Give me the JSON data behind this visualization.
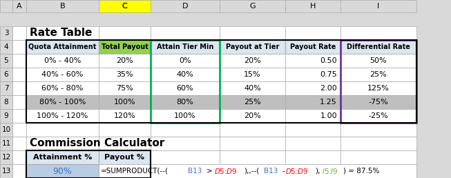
{
  "title_rate": "Rate Table",
  "title_calc": "Commission Calculator",
  "headers": [
    "Quota Attainment",
    "Total Payout",
    "Attain Tier Min",
    "Payout at Tier",
    "Payout Rate",
    "Differential Rate"
  ],
  "rows": [
    [
      "0% - 40%",
      "20%",
      "0%",
      "20%",
      "0.50",
      "50%"
    ],
    [
      "40% - 60%",
      "35%",
      "40%",
      "15%",
      "0.75",
      "25%"
    ],
    [
      "60% - 80%",
      "75%",
      "60%",
      "40%",
      "2.00",
      "125%"
    ],
    [
      "80% - 100%",
      "100%",
      "80%",
      "25%",
      "1.25",
      "-75%"
    ],
    [
      "100% - 120%",
      "120%",
      "100%",
      "20%",
      "1.00",
      "-25%"
    ]
  ],
  "calc_headers": [
    "Attainment %",
    "Payout %"
  ],
  "calc_row": [
    "90%",
    "=SUMPRODUCT(--(B13>$D$5:$D$9),--(B13-$D$5:$D$9),$I$5:$I$9) = 87.5%"
  ],
  "bg_color": "#d9d9d9",
  "header_bg": "#dce6f1",
  "total_payout_header_bg": "#92d050",
  "row8_bg": "#bfbfbf",
  "green_col_border": "#00b050",
  "purple_col_border": "#7030a0",
  "attainment_cell_bg": "#b8cce4",
  "attainment_cell_fg": "#4472c4",
  "formula_colors": {
    "bracket_text": "#000000",
    "b13_color": "#4472c4",
    "d_range_color": "#ff0000",
    "i_range_color": "#70ad47",
    "result_color": "#ff00ff"
  }
}
